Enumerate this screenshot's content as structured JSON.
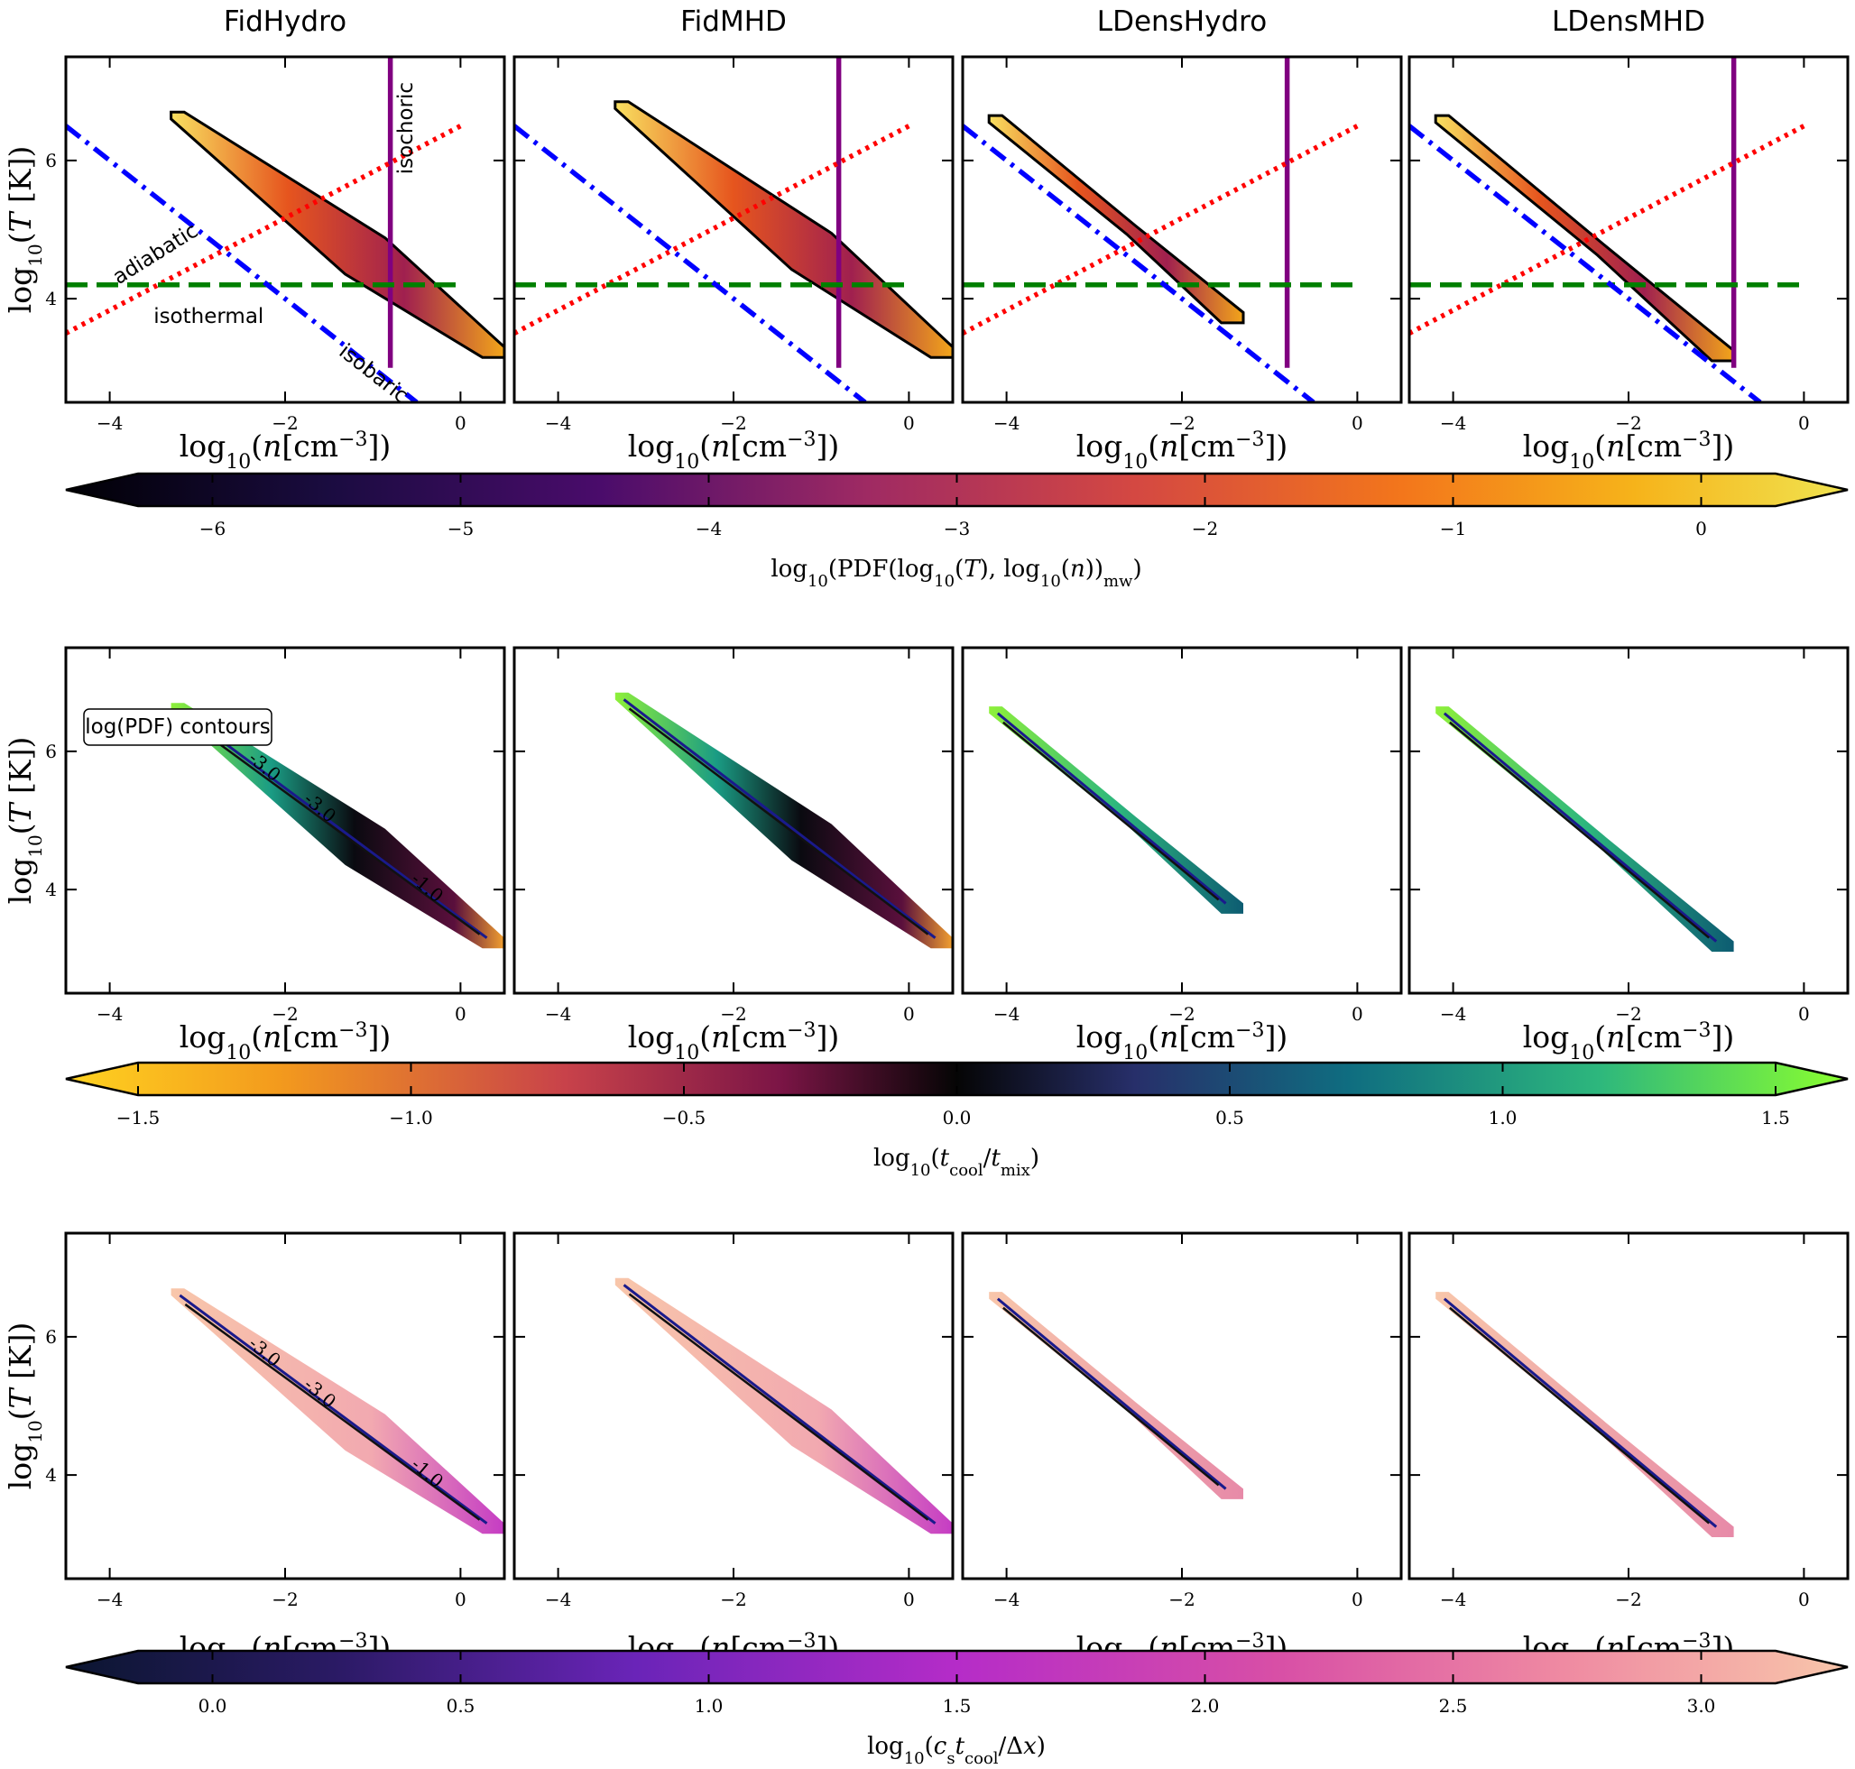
{
  "chart_data": {
    "type": "heatmap",
    "columns": [
      "FidHydro",
      "FidMHD",
      "LDensHydro",
      "LDensMHD"
    ],
    "x_axis": {
      "label": "log10(n[cm^-3])",
      "range": [
        -4.5,
        0.5
      ],
      "ticks": [
        -4,
        -2,
        0
      ],
      "tick_labels": [
        "−4",
        "−2",
        "0"
      ]
    },
    "y_axis": {
      "label": "log10(T [K])",
      "range": [
        2.5,
        7.5
      ],
      "ticks": [
        4,
        6
      ],
      "tick_labels": [
        "4",
        "6"
      ]
    },
    "panel_extents": {
      "FidHydro": {
        "n": [
          -3.3,
          0.5
        ],
        "T_hot": 6.7,
        "T_cold": 3.2
      },
      "FidMHD": {
        "n": [
          -3.35,
          0.5
        ],
        "T_hot": 6.85,
        "T_cold": 3.2
      },
      "LDensHydro": {
        "n": [
          -4.2,
          -1.3
        ],
        "T_hot": 6.65,
        "T_cold": 3.7
      },
      "LDensMHD": {
        "n": [
          -4.2,
          -0.8
        ],
        "T_hot": 6.65,
        "T_cold": 3.15
      }
    },
    "rows": [
      {
        "quantity": "log10(PDF(log10(T), log10(n))_mw)",
        "colormap": "inferno",
        "colorbar": {
          "range": [
            -6.3,
            0.3
          ],
          "ticks": [
            -6,
            -5,
            -4,
            -3,
            -2,
            -1,
            0
          ],
          "tick_labels": [
            "−6",
            "−5",
            "−4",
            "−3",
            "−2",
            "−1",
            "0"
          ],
          "label": "log10(PDF(log10(T), log10(n))mw)",
          "extend": "both"
        },
        "reference_lines": [
          {
            "name": "isochoric",
            "type": "vertical",
            "n": -0.8,
            "T_range": [
              3.0,
              7.5
            ],
            "color": "#800080",
            "style": "solid"
          },
          {
            "name": "adiabatic",
            "type": "slope",
            "slope": 0.667,
            "points": [
              [
                -4.5,
                3.5
              ],
              [
                0.0,
                6.5
              ]
            ],
            "color": "#ff0000",
            "style": "dotted"
          },
          {
            "name": "isothermal",
            "type": "horizontal",
            "T": 4.2,
            "n_range": [
              -4.5,
              0.0
            ],
            "color": "#008000",
            "style": "dashed"
          },
          {
            "name": "isobaric",
            "type": "slope",
            "slope": -1.0,
            "points": [
              [
                -4.5,
                6.5
              ],
              [
                -0.5,
                2.5
              ]
            ],
            "color": "#0000ff",
            "style": "dashdot"
          }
        ],
        "annotations": [
          "adiabatic",
          "isothermal",
          "isochoric",
          "isobaric"
        ]
      },
      {
        "quantity": "log10(t_cool/t_mix)",
        "colormap": "diverging (yellow-red-black-teal-green)",
        "colorbar": {
          "range": [
            -1.5,
            1.5
          ],
          "ticks": [
            -1.5,
            -1.0,
            -0.5,
            0.0,
            0.5,
            1.0,
            1.5
          ],
          "tick_labels": [
            "−1.5",
            "−1.0",
            "−0.5",
            "0.0",
            "0.5",
            "1.0",
            "1.5"
          ],
          "label": "log10(tcool/tmix)",
          "extend": "both"
        },
        "legend_box": "log(PDF) contours",
        "contour_labels": [
          "-3.0",
          "-3.0",
          "-1.0"
        ]
      },
      {
        "quantity": "log10(c_s t_cool/Δx)",
        "colormap": "magma",
        "colorbar": {
          "range": [
            -0.15,
            3.15
          ],
          "ticks": [
            0.0,
            0.5,
            1.0,
            1.5,
            2.0,
            2.5,
            3.0
          ],
          "tick_labels": [
            "0.0",
            "0.5",
            "1.0",
            "1.5",
            "2.0",
            "2.5",
            "3.0"
          ],
          "label": "log10(cstcool/Δx)",
          "extend": "both"
        },
        "contour_labels": [
          "-3.0",
          "-3.0",
          "-1.0"
        ]
      }
    ]
  }
}
